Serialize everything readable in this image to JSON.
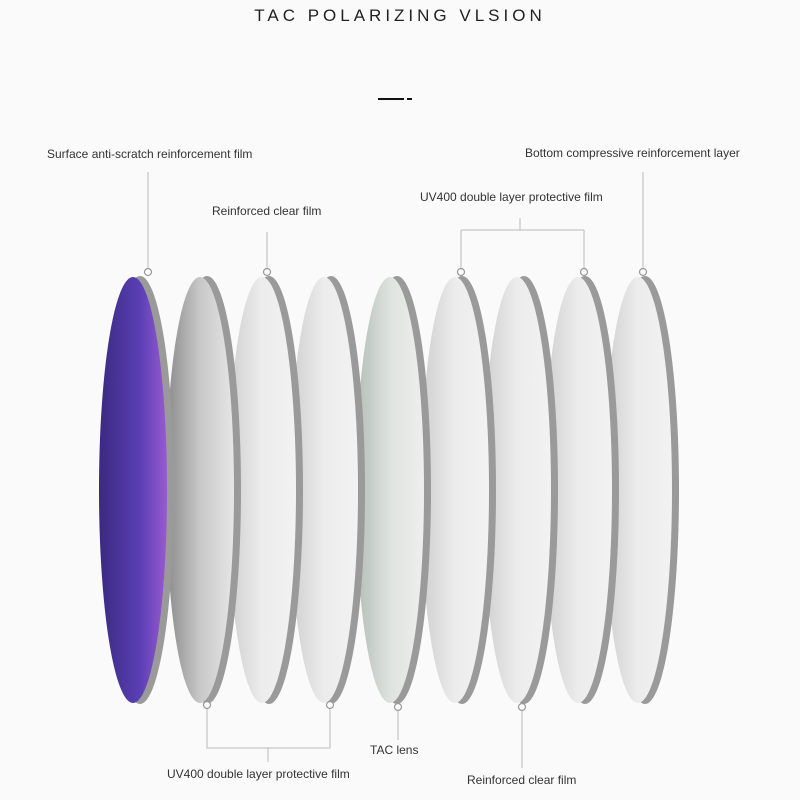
{
  "title": "TAC POLARIZING VLSION",
  "labels": {
    "surface": "Surface anti-scratch reinforcement film",
    "reinforced_top": "Reinforced clear film",
    "uv400_top": "UV400 double layer protective film",
    "bottom_layer": "Bottom compressive reinforcement layer",
    "uv400_bottom": "UV400 double layer protective film",
    "tac": "TAC lens",
    "reinforced_bottom": "Reinforced clear film"
  },
  "colors": {
    "accent_lens": "#5a3fb0",
    "rim": "#9a9a9a",
    "leader": "#bbbbbb"
  }
}
